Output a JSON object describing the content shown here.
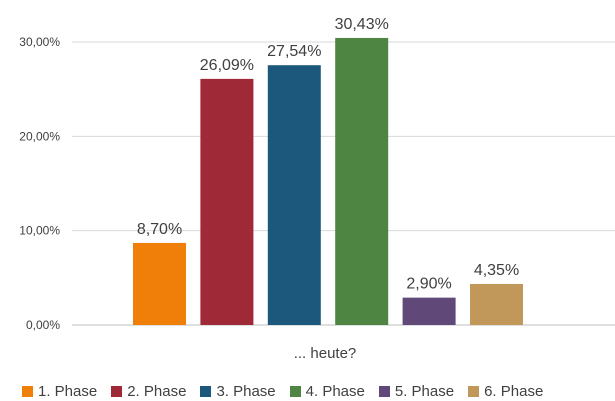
{
  "chart_data": {
    "type": "bar",
    "title": "",
    "xlabel": "... heute?",
    "ylabel": "",
    "ylim": [
      0,
      30
    ],
    "yticks": [
      0,
      10,
      20,
      30
    ],
    "ytick_labels": [
      "0,00%",
      "10,00%",
      "20,00%",
      "30,00%"
    ],
    "grid": true,
    "legend_position": "bottom",
    "categories": [
      "1. Phase",
      "2. Phase",
      "3. Phase",
      "4. Phase",
      "5. Phase",
      "6. Phase"
    ],
    "values": [
      8.7,
      26.09,
      27.54,
      30.43,
      2.9,
      4.35
    ],
    "data_labels": [
      "8,70%",
      "26,09%",
      "27,54%",
      "30,43%",
      "2,90%",
      "4,35%"
    ],
    "colors": [
      "#f07f09",
      "#9f2936",
      "#1b587c",
      "#4e8542",
      "#604878",
      "#c19859"
    ]
  }
}
